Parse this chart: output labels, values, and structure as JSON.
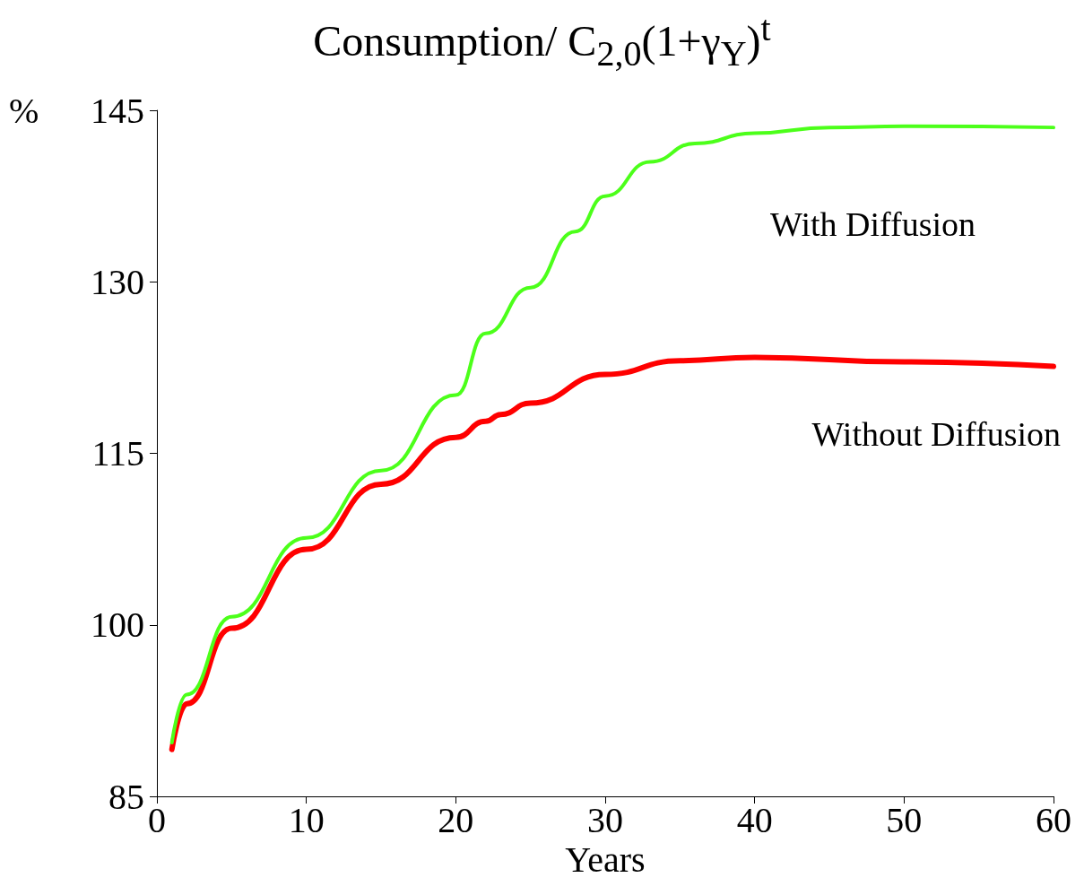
{
  "chart_data": {
    "type": "line",
    "title": "Consumption/ C$_{2,0}$(1+γ$_{Y}$)$^{t}$",
    "xlabel": "Years",
    "ylabel": "%",
    "x": [
      1,
      2,
      5,
      10,
      15,
      20,
      22,
      25,
      28,
      30,
      33,
      36,
      40,
      45,
      50,
      60
    ],
    "series": [
      {
        "name": "With Diffusion",
        "color": "#4cff1a",
        "values": [
          89.7,
          93.9,
          100.7,
          107.6,
          113.5,
          120.1,
          125.5,
          129.5,
          134.4,
          137.5,
          140.5,
          142.1,
          143.0,
          143.5,
          143.6,
          143.5
        ]
      },
      {
        "name": "Without Diffusion",
        "color": "#ff0000",
        "x": [
          1,
          2,
          5,
          10,
          15,
          20,
          22,
          23,
          25,
          30,
          35,
          40,
          50,
          60
        ],
        "values": [
          89.1,
          93.1,
          99.7,
          106.6,
          112.3,
          116.4,
          117.8,
          118.4,
          119.4,
          121.9,
          123.1,
          123.4,
          123.0,
          122.6
        ]
      }
    ],
    "xlim": [
      0,
      60
    ],
    "xticks": [
      0,
      10,
      20,
      30,
      40,
      50,
      60
    ],
    "ylim": [
      85,
      145
    ],
    "yticks": [
      85,
      100,
      115,
      130,
      145
    ],
    "grid": false,
    "legend": false,
    "marker": "none",
    "line_style": "solid"
  }
}
